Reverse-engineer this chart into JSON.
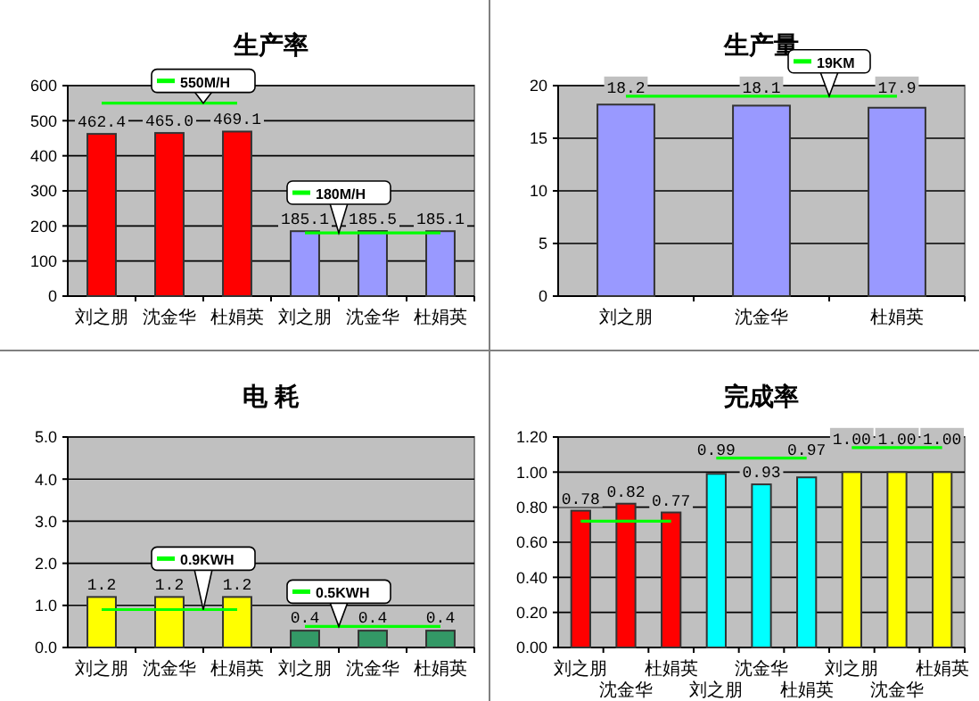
{
  "chart_data": [
    {
      "type": "bar",
      "title": "生产率",
      "legend": "top",
      "categories": [
        "刘之朋",
        "沈金华",
        "杜娟英",
        "刘之朋",
        "沈金华",
        "杜娟英"
      ],
      "ylim": [
        0,
        600
      ],
      "yticks": [
        0,
        100,
        200,
        300,
        400,
        500,
        600
      ],
      "grid": "y",
      "series": [
        {
          "type": "bar",
          "colors": [
            "#ff0000",
            "#ff0000",
            "#ff0000",
            "#9999ff",
            "#9999ff",
            "#9999ff"
          ],
          "values": [
            462.4,
            465.0,
            469.1,
            185.1,
            185.5,
            185.1
          ],
          "value_labels": [
            "462.4",
            "465.0",
            "469.1",
            "185.1",
            "185.5",
            "185.1"
          ]
        },
        {
          "type": "step",
          "name": "550M/H",
          "color": "#00ff00",
          "values": [
            550,
            550,
            550,
            null,
            null,
            null
          ]
        },
        {
          "type": "step",
          "name": "180M/H",
          "color": "#00ff00",
          "values": [
            null,
            null,
            null,
            180,
            180,
            180
          ]
        }
      ]
    },
    {
      "type": "bar",
      "title": "生产量",
      "legend": "top",
      "categories": [
        "刘之朋",
        "沈金华",
        "杜娟英"
      ],
      "ylim": [
        0,
        20
      ],
      "yticks": [
        0,
        5,
        10,
        15,
        20
      ],
      "grid": "y",
      "series": [
        {
          "type": "bar",
          "color": "#9999ff",
          "values": [
            18.2,
            18.1,
            17.9
          ],
          "value_labels": [
            "18.2",
            "18.1",
            "17.9"
          ]
        },
        {
          "type": "step",
          "name": "19KM",
          "color": "#00ff00",
          "values": [
            19,
            19,
            19
          ]
        }
      ]
    },
    {
      "type": "bar",
      "title": "电 耗",
      "legend": "bottom left",
      "categories": [
        "刘之朋",
        "沈金华",
        "杜娟英",
        "刘之朋",
        "沈金华",
        "杜娟英"
      ],
      "ylim": [
        0,
        5
      ],
      "yticks": [
        {
          "value": 0,
          "label": "0.0"
        },
        {
          "value": 1,
          "label": "1.0"
        },
        {
          "value": 2,
          "label": "2.0"
        },
        {
          "value": 3,
          "label": "3.0"
        },
        {
          "value": 4,
          "label": "4.0"
        },
        {
          "value": 5,
          "label": "5.0"
        }
      ],
      "grid": "y",
      "series": [
        {
          "type": "bar",
          "colors": [
            "#ffff00",
            "#ffff00",
            "#ffff00",
            "#339966",
            "#339966",
            "#339966"
          ],
          "values": [
            1.2,
            1.2,
            1.2,
            0.4,
            0.4,
            0.4
          ],
          "value_labels": [
            "1.2",
            "1.2",
            "1.2",
            "0.4",
            "0.4",
            "0.4"
          ]
        },
        {
          "type": "step",
          "name": "0.9KWH",
          "color": "#00ff00",
          "values": [
            0.9,
            0.9,
            0.9,
            null,
            null,
            null
          ]
        },
        {
          "type": "step",
          "name": "0.5KWH",
          "color": "#00ff00",
          "values": [
            null,
            null,
            null,
            0.5,
            0.5,
            0.5
          ]
        }
      ]
    },
    {
      "type": "bar",
      "title": "完成率",
      "categories": [
        "刘之朋",
        "沈金华",
        "杜娟英",
        "刘之朋",
        "沈金华",
        "杜娟英",
        "刘之朋",
        "沈金华",
        "杜娟英"
      ],
      "ylim": [
        0,
        1.2
      ],
      "yticks": [
        {
          "value": 0,
          "label": "0.00"
        },
        {
          "value": 0.2,
          "label": "0.20"
        },
        {
          "value": 0.4,
          "label": "0.40"
        },
        {
          "value": 0.6,
          "label": "0.60"
        },
        {
          "value": 0.8,
          "label": "0.80"
        },
        {
          "value": 1,
          "label": "1.00"
        },
        {
          "value": 1.2,
          "label": "1.20"
        }
      ],
      "grid": "y",
      "series": [
        {
          "type": "bar",
          "colors": [
            "#ff0000",
            "#ff0000",
            "#ff0000",
            "#00ffff",
            "#00ffff",
            "#00ffff",
            "#ffff00",
            "#ffff00",
            "#ffff00"
          ],
          "values": [
            0.78,
            0.82,
            0.77,
            0.99,
            0.93,
            0.97,
            1.0,
            1.0,
            1.0
          ],
          "value_labels": [
            "0.78",
            "0.82",
            "0.77",
            "0.99",
            "0.93",
            "0.97",
            "1.00",
            "1.00",
            "1.00"
          ]
        },
        {
          "type": "step",
          "color": "#00ff00",
          "values": [
            0.72,
            0.72,
            0.72,
            null,
            null,
            null,
            null,
            null,
            null
          ]
        },
        {
          "type": "step",
          "color": "#00ff00",
          "values": [
            null,
            null,
            null,
            1.08,
            1.08,
            1.08,
            null,
            null,
            null
          ]
        },
        {
          "type": "step",
          "color": "#00ff00",
          "values": [
            null,
            null,
            null,
            null,
            null,
            null,
            1.14,
            1.14,
            1.14
          ]
        }
      ]
    }
  ]
}
